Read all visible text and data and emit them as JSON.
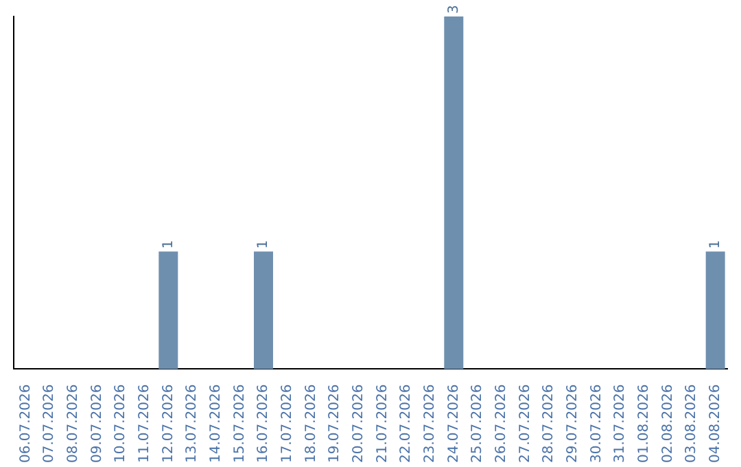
{
  "chart_data": {
    "type": "bar",
    "categories": [
      "06.07.2026",
      "07.07.2026",
      "08.07.2026",
      "09.07.2026",
      "10.07.2026",
      "11.07.2026",
      "12.07.2026",
      "13.07.2026",
      "14.07.2026",
      "15.07.2026",
      "16.07.2026",
      "17.07.2026",
      "18.07.2026",
      "19.07.2026",
      "20.07.2026",
      "21.07.2026",
      "22.07.2026",
      "23.07.2026",
      "24.07.2026",
      "25.07.2026",
      "26.07.2026",
      "27.07.2026",
      "28.07.2026",
      "29.07.2026",
      "30.07.2026",
      "31.07.2026",
      "01.08.2026",
      "02.08.2026",
      "03.08.2026",
      "04.08.2026"
    ],
    "values": [
      0,
      0,
      0,
      0,
      0,
      0,
      1,
      0,
      0,
      0,
      1,
      0,
      0,
      0,
      0,
      0,
      0,
      0,
      3,
      0,
      0,
      0,
      0,
      0,
      0,
      0,
      0,
      0,
      0,
      1
    ],
    "value_labels": [
      null,
      null,
      null,
      null,
      null,
      null,
      "1",
      null,
      null,
      null,
      "1",
      null,
      null,
      null,
      null,
      null,
      null,
      null,
      "3",
      null,
      null,
      null,
      null,
      null,
      null,
      null,
      null,
      null,
      null,
      "1"
    ],
    "color": "#6f8fae",
    "grid": false,
    "legend": false,
    "tick_labels": "x"
  }
}
